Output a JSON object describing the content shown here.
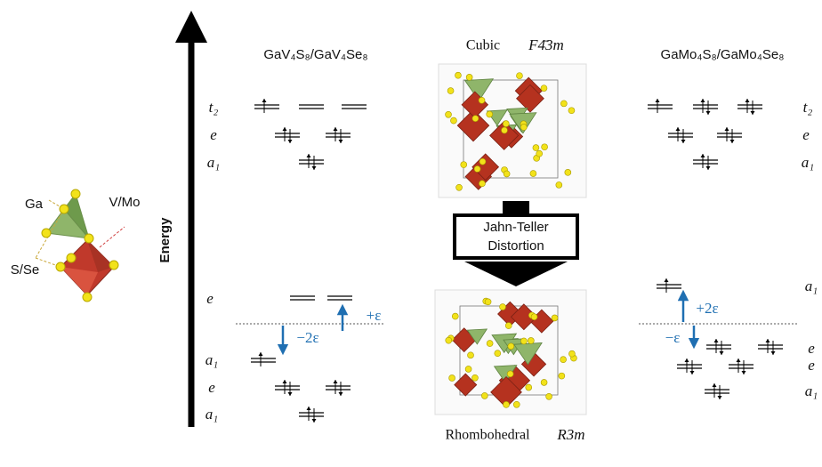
{
  "energy_axis": {
    "label": "Energy"
  },
  "left_compound": "GaV₄S₈/GaV₄Se₈",
  "right_compound": "GaMo₄S₈/GaMo₄Se₈",
  "cubic": {
    "name": "Cubic",
    "space_group": "F4̄3m"
  },
  "rhombohedral": {
    "name": "Rhombohedral",
    "space_group": "R3m"
  },
  "transition": [
    "Jahn-Teller",
    "Distortion"
  ],
  "cluster_labels": [
    "Ga",
    "V/Mo",
    "S/Se"
  ],
  "levels": {
    "left_cubic": [
      "t₂",
      "e",
      "a₁"
    ],
    "left_rhombohedral": [
      "e",
      "a₁",
      "e",
      "a₁"
    ],
    "right_cubic": [
      "t₂",
      "e",
      "a₁"
    ],
    "right_rhombohedral": [
      "a₁",
      "e",
      "e",
      "a₁"
    ]
  },
  "splittings": {
    "left": [
      "+ε",
      "−2ε"
    ],
    "right": [
      "+2ε",
      "−ε"
    ]
  }
}
